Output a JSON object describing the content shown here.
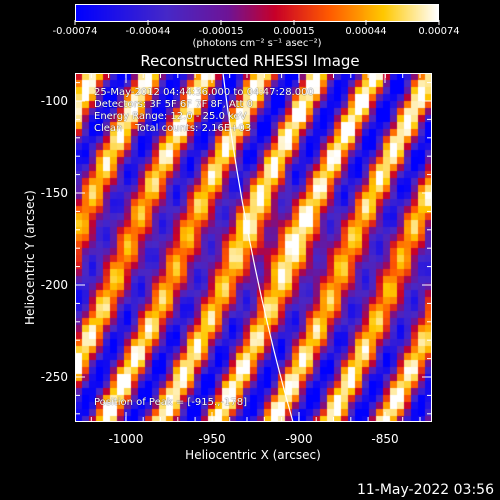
{
  "colorbar": {
    "tick_labels": [
      "-0.00074",
      "-0.00044",
      "-0.00015",
      "0.00015",
      "0.00044",
      "0.00074"
    ],
    "units": "(photons cm⁻² s⁻¹ asec⁻²)"
  },
  "title": "Reconstructed RHESSI Image",
  "info": {
    "time_range": "25-May-2012 04:44:36.000 to 04:47:28.000",
    "detectors": "Detectors: 3F 5F 6F 7F 8F, Att 0",
    "energy": "Energy Range: 12.0 - 25.0 keV",
    "clean": "Clean    Total counts: 2.16E+03",
    "peak": "Position of Peak = [-915.,-178]"
  },
  "axes": {
    "xlabel": "Heliocentric X (arcsec)",
    "ylabel": "Heliocentric Y (arcsec)",
    "xticks": [
      "-1000",
      "-950",
      "-900",
      "-850"
    ],
    "yticks": [
      "-100",
      "-150",
      "-200",
      "-250"
    ]
  },
  "timestamp": "11-May-2022 03:56",
  "colors": {
    "background": "#000000",
    "text": "#ffffff"
  }
}
